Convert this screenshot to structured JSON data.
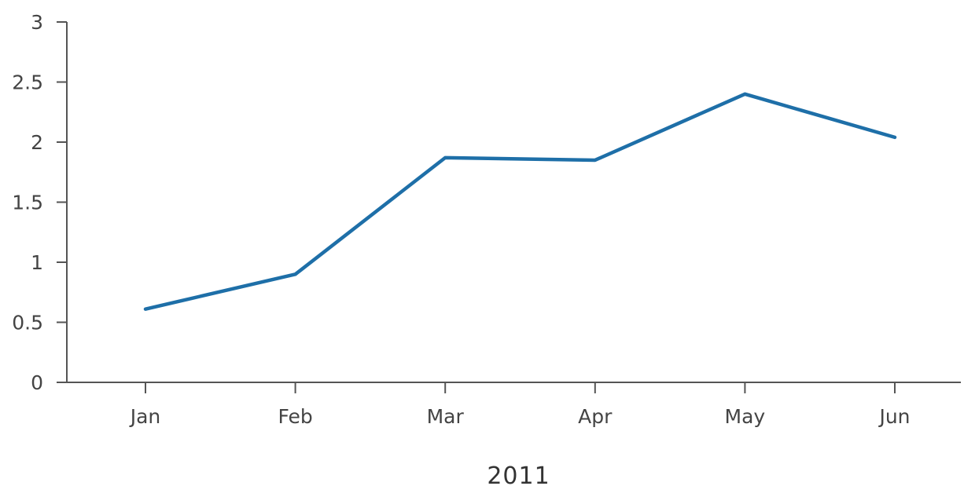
{
  "chart_data": {
    "type": "line",
    "title": "",
    "xlabel": "2011",
    "ylabel": "",
    "categories": [
      "Jan",
      "Feb",
      "Mar",
      "Apr",
      "May",
      "Jun"
    ],
    "series": [
      {
        "values": [
          0.61,
          0.9,
          1.87,
          1.85,
          2.4,
          2.04
        ]
      }
    ],
    "ylim": [
      0,
      3
    ],
    "yticks": [
      "0",
      "0.5",
      "1",
      "1.5",
      "2",
      "2.5",
      "3"
    ],
    "grid": false,
    "legend": "none",
    "colors": {
      "line": "#1e6fa8",
      "axis": "#555555"
    }
  }
}
